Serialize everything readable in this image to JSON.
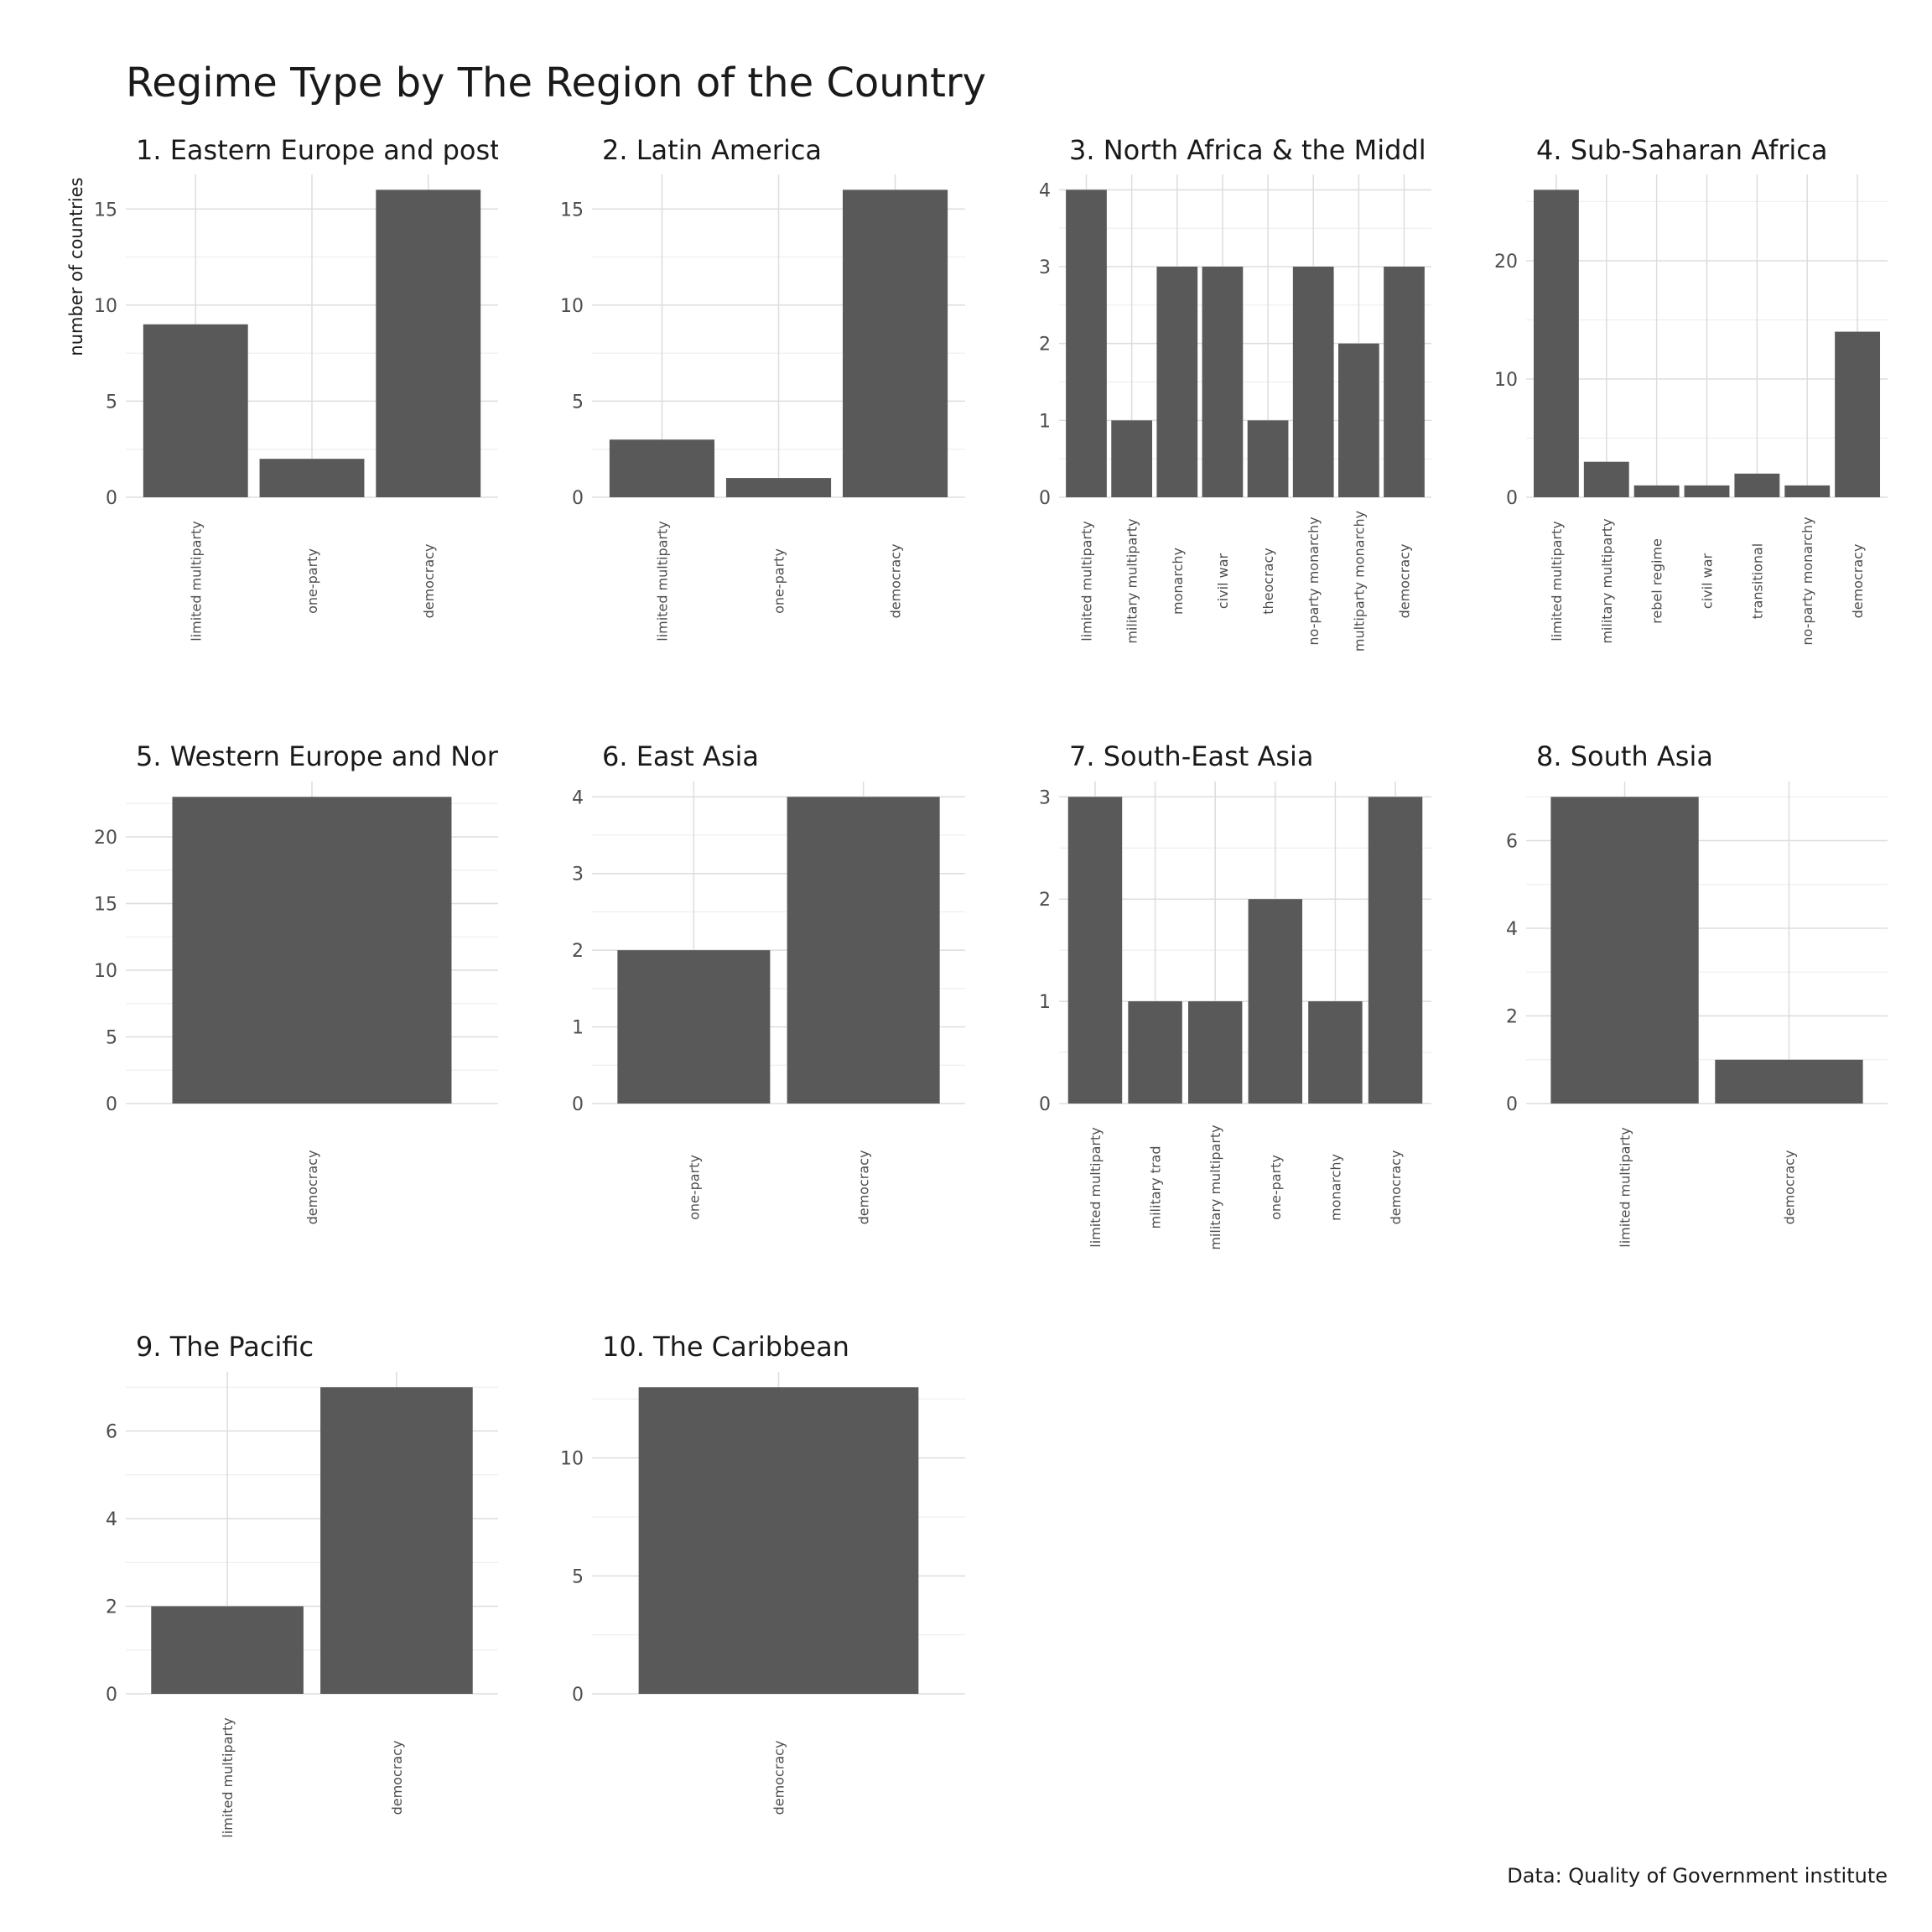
{
  "title": "Regime Type by The Region of the Country",
  "caption": "Data: Quality of Government institute",
  "ylabel": "number of countries",
  "colors": {
    "bar": "#595959",
    "grid": "#dddddd",
    "text": "#1a1a1a",
    "axis_text": "#4d4d4d"
  },
  "chart_data": [
    {
      "type": "bar",
      "title": "1. Eastern Europe and post",
      "ylim": [
        0,
        16.8
      ],
      "yticks": [
        0,
        5,
        10,
        15
      ],
      "categories": [
        "limited multiparty",
        "one-party",
        "democracy"
      ],
      "values": [
        9,
        2,
        16
      ]
    },
    {
      "type": "bar",
      "title": "2. Latin America",
      "ylim": [
        0,
        16.8
      ],
      "yticks": [
        0,
        5,
        10,
        15
      ],
      "categories": [
        "limited multiparty",
        "one-party",
        "democracy"
      ],
      "values": [
        3,
        1,
        16
      ]
    },
    {
      "type": "bar",
      "title": "3. North Africa & the Middl",
      "ylim": [
        0,
        4.2
      ],
      "yticks": [
        0,
        1,
        2,
        3,
        4
      ],
      "categories": [
        "limited multiparty",
        "military multiparty",
        "monarchy",
        "civil war",
        "theocracy",
        "no-party monarchy",
        "multiparty monarchy",
        "democracy"
      ],
      "values": [
        4,
        1,
        3,
        3,
        1,
        3,
        2,
        3
      ]
    },
    {
      "type": "bar",
      "title": "4. Sub-Saharan Africa",
      "ylim": [
        0,
        27.3
      ],
      "yticks": [
        0,
        10,
        20
      ],
      "categories": [
        "limited multiparty",
        "military multiparty",
        "rebel regime",
        "civil war",
        "transitional",
        "no-party monarchy",
        "democracy"
      ],
      "values": [
        26,
        3,
        1,
        1,
        2,
        1,
        14
      ]
    },
    {
      "type": "bar",
      "title": "5. Western Europe and Nor",
      "ylim": [
        0,
        24.15
      ],
      "yticks": [
        0,
        5,
        10,
        15,
        20
      ],
      "categories": [
        "democracy"
      ],
      "values": [
        23
      ]
    },
    {
      "type": "bar",
      "title": "6. East Asia",
      "ylim": [
        0,
        4.2
      ],
      "yticks": [
        0,
        1,
        2,
        3,
        4
      ],
      "categories": [
        "one-party",
        "democracy"
      ],
      "values": [
        2,
        4
      ]
    },
    {
      "type": "bar",
      "title": "7. South-East Asia",
      "ylim": [
        0,
        3.15
      ],
      "yticks": [
        0,
        1,
        2,
        3
      ],
      "categories": [
        "limited multiparty",
        "military trad",
        "military multiparty",
        "one-party",
        "monarchy",
        "democracy"
      ],
      "values": [
        3,
        1,
        1,
        2,
        1,
        3
      ]
    },
    {
      "type": "bar",
      "title": "8. South Asia",
      "ylim": [
        0,
        7.35
      ],
      "yticks": [
        0,
        2,
        4,
        6
      ],
      "categories": [
        "limited multiparty",
        "democracy"
      ],
      "values": [
        7,
        1
      ]
    },
    {
      "type": "bar",
      "title": "9. The Pacific",
      "ylim": [
        0,
        7.35
      ],
      "yticks": [
        0,
        2,
        4,
        6
      ],
      "categories": [
        "limited multiparty",
        "democracy"
      ],
      "values": [
        2,
        7
      ]
    },
    {
      "type": "bar",
      "title": "10. The Caribbean",
      "ylim": [
        0,
        13.65
      ],
      "yticks": [
        0,
        5,
        10
      ],
      "categories": [
        "democracy"
      ],
      "values": [
        13
      ]
    }
  ]
}
